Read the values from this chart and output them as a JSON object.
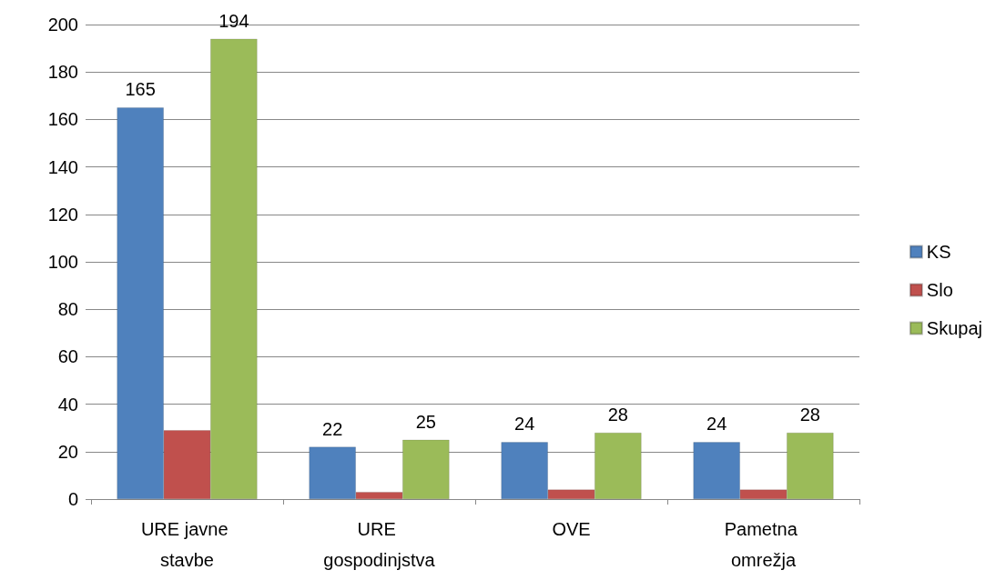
{
  "chart_data": {
    "type": "bar",
    "categories": [
      "URE javne stavbe",
      "URE gospodinjstva",
      "OVE",
      "Pametna omrežja"
    ],
    "series": [
      {
        "name": "KS",
        "color": "#4f81bd",
        "values": [
          165,
          22,
          24,
          24
        ],
        "value_labels": [
          "165",
          "22",
          "24",
          "24"
        ]
      },
      {
        "name": "Slo",
        "color": "#c0504d",
        "values": [
          29,
          3,
          4,
          4
        ]
      },
      {
        "name": "Skupaj",
        "color": "#9bbb59",
        "values": [
          194,
          25,
          28,
          28
        ],
        "value_labels": [
          "194",
          "25",
          "28",
          "28"
        ]
      }
    ],
    "ylim": [
      0,
      200
    ],
    "yticks": [
      0,
      20,
      40,
      60,
      80,
      100,
      120,
      140,
      160,
      180,
      200
    ],
    "grid": "y",
    "legend": "right"
  }
}
